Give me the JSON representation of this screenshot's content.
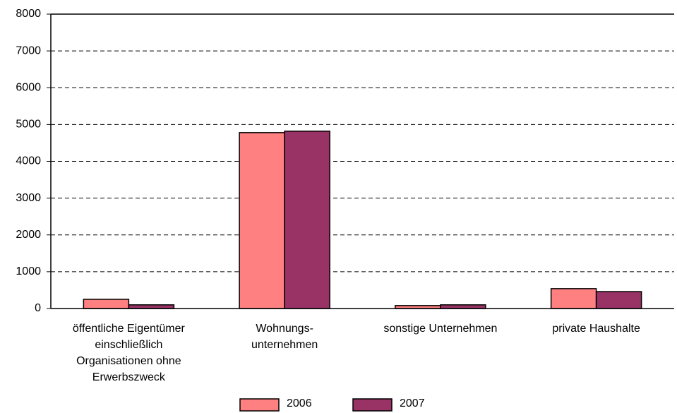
{
  "chart_data": {
    "type": "bar",
    "categories": [
      "öffentliche Eigentümer\neinschließlich\nOrganisationen ohne\nErwerbszweck",
      "Wohnungs-\nunternehmen",
      "sonstige Unternehmen",
      "private Haushalte"
    ],
    "series": [
      {
        "name": "2006",
        "color": "#ff8080",
        "values": [
          250,
          4780,
          80,
          540
        ]
      },
      {
        "name": "2007",
        "color": "#993366",
        "values": [
          100,
          4820,
          100,
          460
        ]
      }
    ],
    "ylim": [
      0,
      8000
    ],
    "yticks": [
      0,
      1000,
      2000,
      3000,
      4000,
      5000,
      6000,
      7000,
      8000
    ],
    "grid": true,
    "legend": "bottom"
  }
}
